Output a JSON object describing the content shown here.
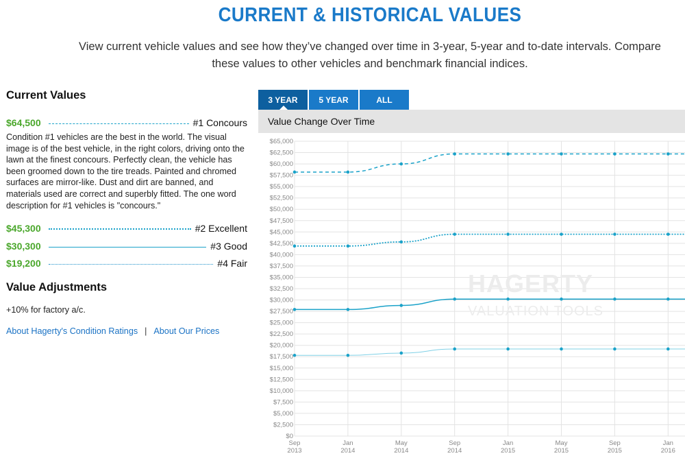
{
  "header": {
    "title": "CURRENT & HISTORICAL VALUES",
    "intro": "View current vehicle values and see how they’ve changed over time in 3-year, 5-year and to-date intervals. Compare these values to other vehicles and benchmark financial indices."
  },
  "current_values": {
    "title": "Current Values",
    "items": [
      {
        "price": "$64,500",
        "condition": "#1 Concours"
      },
      {
        "price": "$45,300",
        "condition": "#2 Excellent"
      },
      {
        "price": "$30,300",
        "condition": "#3 Good"
      },
      {
        "price": "$19,200",
        "condition": "#4 Fair"
      }
    ],
    "description": "Condition #1 vehicles are the best in the world. The visual image is of the best vehicle, in the right colors, driving onto the lawn at the finest concours. Perfectly clean, the vehicle has been groomed down to the tire treads. Painted and chromed surfaces are mirror-like. Dust and dirt are banned, and materials used are correct and superbly fitted. The one word description for #1 vehicles is \"concours.\""
  },
  "adjustments": {
    "title": "Value Adjustments",
    "text": "+10% for factory a/c."
  },
  "links": {
    "condition_ratings": "About Hagerty's Condition Ratings",
    "separator": "|",
    "prices": "About Our Prices"
  },
  "tabs": [
    {
      "label": "3 YEAR",
      "active": true
    },
    {
      "label": "5 YEAR",
      "active": false
    },
    {
      "label": "ALL",
      "active": false
    }
  ],
  "chart_header": "Value Change Over Time",
  "watermark": {
    "brand": "HAGERTY",
    "sub": "VALUATION TOOLS"
  },
  "colors": {
    "accent": "#1a7ac9",
    "price_green": "#4aa72b",
    "series": "#1aa2c9"
  },
  "chart_data": {
    "type": "line",
    "title": "Value Change Over Time",
    "xlabel": "",
    "ylabel": "",
    "ylim": [
      0,
      65000
    ],
    "yticks": [
      0,
      2500,
      5000,
      7500,
      10000,
      12500,
      15000,
      17500,
      20000,
      22500,
      25000,
      27500,
      30000,
      32500,
      35000,
      37500,
      40000,
      42500,
      45000,
      47500,
      50000,
      52500,
      55000,
      57500,
      60000,
      62500,
      65000
    ],
    "ytick_labels": [
      "$0",
      "$2,500",
      "$5,000",
      "$7,500",
      "$10,000",
      "$12,500",
      "$15,000",
      "$17,500",
      "$20,000",
      "$22,500",
      "$25,000",
      "$27,500",
      "$30,000",
      "$32,500",
      "$35,000",
      "$37,500",
      "$40,000",
      "$42,500",
      "$45,000",
      "$47,500",
      "$50,000",
      "$52,500",
      "$55,000",
      "$57,500",
      "$60,000",
      "$62,500",
      "$65,000"
    ],
    "x": [
      "Sep 2013",
      "Jan 2014",
      "May 2014",
      "Sep 2014",
      "Jan 2015",
      "May 2015",
      "Sep 2015",
      "Jan 2016"
    ],
    "xtick_labels": [
      [
        "Sep",
        "2013"
      ],
      [
        "Jan",
        "2014"
      ],
      [
        "May",
        "2014"
      ],
      [
        "Sep",
        "2014"
      ],
      [
        "Jan",
        "2015"
      ],
      [
        "May",
        "2015"
      ],
      [
        "Sep",
        "2015"
      ],
      [
        "Jan",
        "2016"
      ]
    ],
    "grid": true,
    "legend": "none",
    "series": [
      {
        "name": "#1 Concours",
        "style": "dashed",
        "values": [
          58200,
          58200,
          60000,
          62200,
          62200,
          62200,
          62200,
          62200
        ]
      },
      {
        "name": "#2 Excellent",
        "style": "dotted",
        "values": [
          41900,
          41900,
          42800,
          44500,
          44500,
          44500,
          44500,
          44500
        ]
      },
      {
        "name": "#3 Good",
        "style": "solid",
        "values": [
          27900,
          27900,
          28800,
          30200,
          30200,
          30200,
          30200,
          30200
        ]
      },
      {
        "name": "#4 Fair",
        "style": "thin",
        "values": [
          17800,
          17800,
          18300,
          19200,
          19200,
          19200,
          19200,
          19200
        ]
      }
    ]
  }
}
